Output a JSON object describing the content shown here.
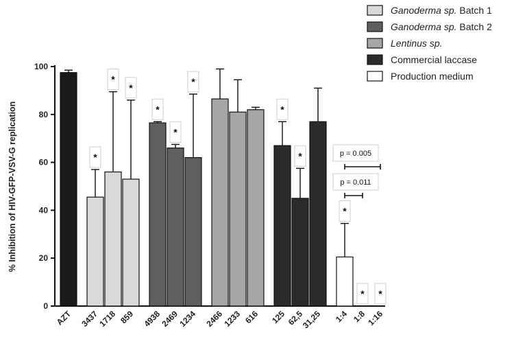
{
  "chart_data": {
    "type": "bar",
    "ylabel": "% Inhibition of HIV-GFP-VSV-G replication",
    "xlabel": "",
    "ylim": [
      0,
      100
    ],
    "yticks": [
      0,
      20,
      40,
      60,
      80,
      100
    ],
    "legend_position": "top-right",
    "colors": {
      "AZT": "#1a1a1a",
      "Ganoderma sp. Batch 1": "#d9d9d9",
      "Ganoderma sp. Batch 2": "#5f5f5f",
      "Lentinus sp.": "#a6a6a6",
      "Commercial laccase": "#2b2b2b",
      "Production medium": "#ffffff"
    },
    "legend": [
      {
        "italic": "Ganoderma sp.",
        "rest": " Batch 1",
        "color": "#d9d9d9"
      },
      {
        "italic": "Ganoderma sp.",
        "rest": " Batch 2",
        "color": "#5f5f5f"
      },
      {
        "italic": "Lentinus sp.",
        "rest": "",
        "color": "#a6a6a6"
      },
      {
        "italic": "",
        "rest": "Commercial laccase",
        "color": "#2b2b2b"
      },
      {
        "italic": "",
        "rest": "Production medium",
        "color": "#ffffff"
      }
    ],
    "groups": [
      {
        "name": "AZT",
        "bars": [
          {
            "label": "AZT",
            "value": 97.5,
            "error": 1,
            "star": false
          }
        ]
      },
      {
        "name": "Ganoderma sp. Batch 1",
        "bars": [
          {
            "label": "3437",
            "value": 45.5,
            "error": 11.5,
            "star": true
          },
          {
            "label": "1718",
            "value": 56,
            "error": 33.5,
            "star": true
          },
          {
            "label": "859",
            "value": 53,
            "error": 33,
            "star": true
          }
        ]
      },
      {
        "name": "Ganoderma sp. Batch 2",
        "bars": [
          {
            "label": "4938",
            "value": 76.5,
            "error": 0.5,
            "star": true
          },
          {
            "label": "2469",
            "value": 66,
            "error": 1.5,
            "star": true
          },
          {
            "label": "1234",
            "value": 62,
            "error": 26.5,
            "star": true
          }
        ]
      },
      {
        "name": "Lentinus sp.",
        "bars": [
          {
            "label": "2466",
            "value": 86.5,
            "error": 12.5,
            "star": false
          },
          {
            "label": "1233",
            "value": 81,
            "error": 13.5,
            "star": false
          },
          {
            "label": "616",
            "value": 82,
            "error": 1,
            "star": false
          }
        ]
      },
      {
        "name": "Commercial laccase",
        "bars": [
          {
            "label": "125",
            "value": 67,
            "error": 10,
            "star": true
          },
          {
            "label": "62,5",
            "value": 45,
            "error": 12.5,
            "star": true
          },
          {
            "label": "31,25",
            "value": 77,
            "error": 14,
            "star": false
          }
        ]
      },
      {
        "name": "Production medium",
        "bars": [
          {
            "label": "1:4",
            "value": 20.5,
            "error": 14,
            "star": true
          },
          {
            "label": "1:8",
            "value": 0,
            "error": 0,
            "star": true
          },
          {
            "label": "1:16",
            "value": 0,
            "error": 0,
            "star": true
          }
        ]
      }
    ],
    "annotations": [
      {
        "text": "p = 0.005",
        "from": "1:4",
        "to": "1:16"
      },
      {
        "text": "p = 0.011",
        "from": "1:4",
        "to": "1:8"
      }
    ],
    "star_symbol": "*"
  }
}
